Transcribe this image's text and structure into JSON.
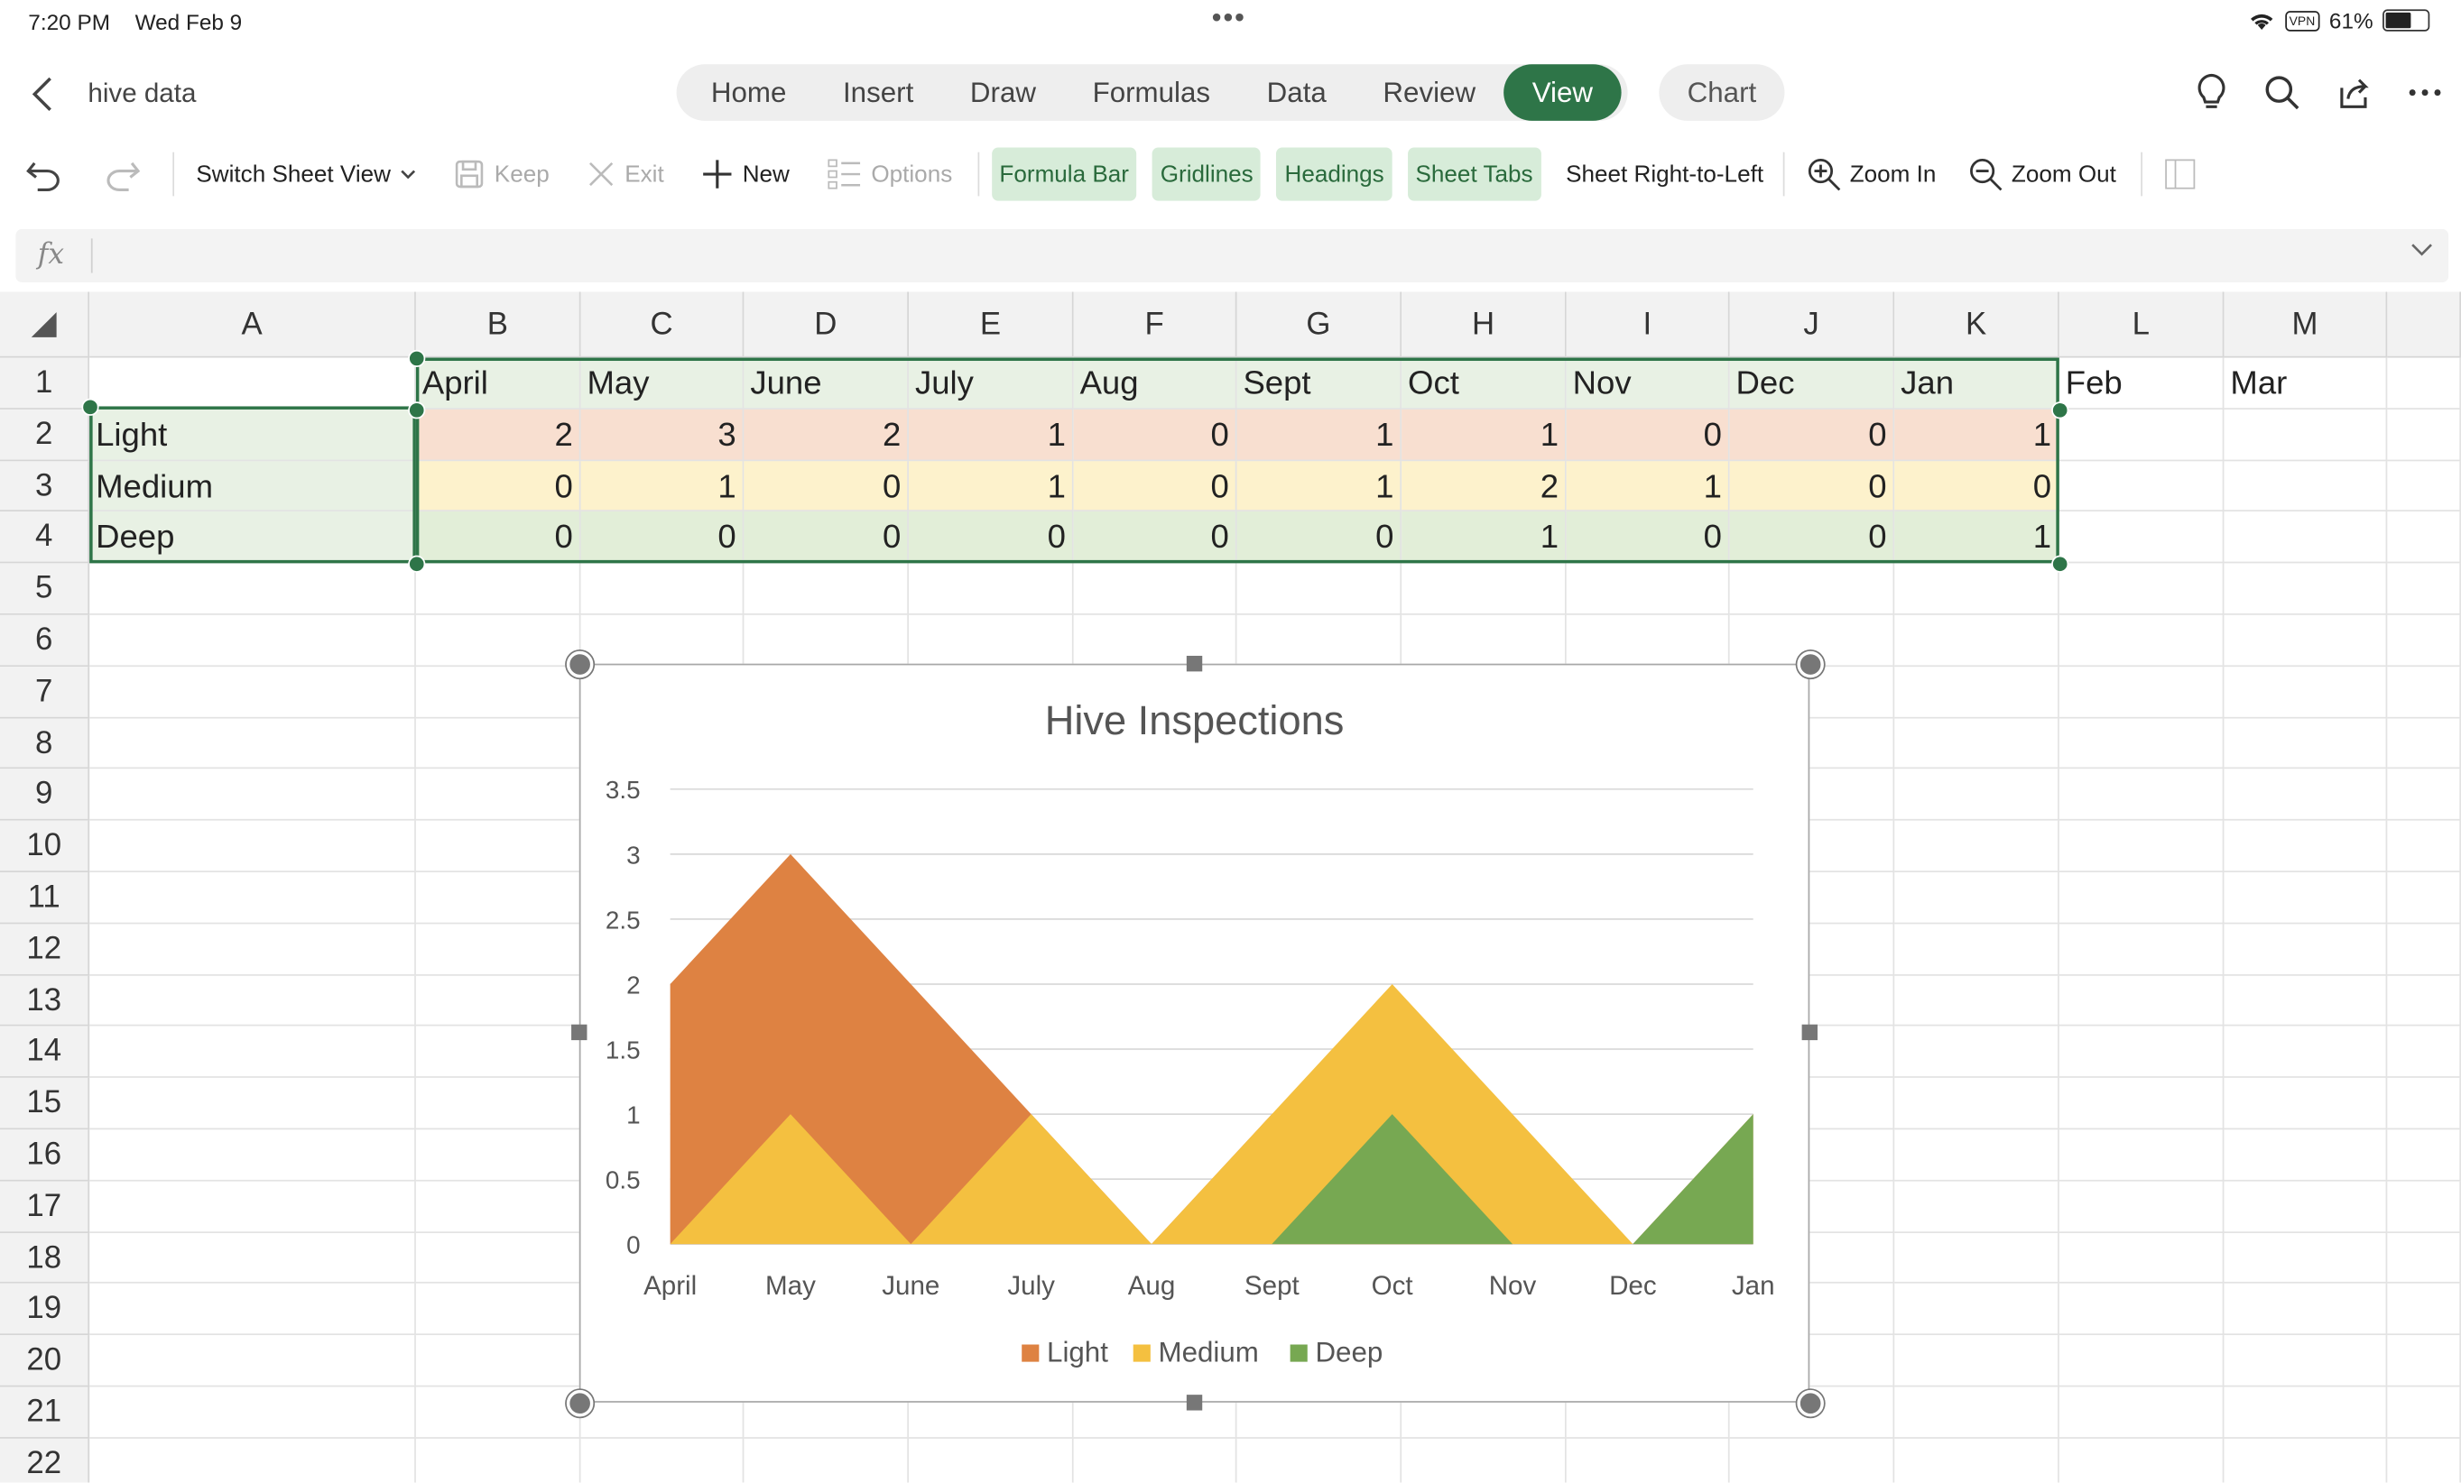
{
  "status": {
    "time": "7:20 PM",
    "date": "Wed Feb 9",
    "vpn": "VPN",
    "battery": "61%",
    "battery_level": 0.61
  },
  "doc": {
    "title": "hive data"
  },
  "tabs": [
    "Home",
    "Insert",
    "Draw",
    "Formulas",
    "Data",
    "Review",
    "View"
  ],
  "active_tab": "View",
  "chart_tab": "Chart",
  "ribbon": {
    "switch_sheet_view": "Switch Sheet View",
    "keep": "Keep",
    "exit": "Exit",
    "new": "New",
    "options": "Options",
    "formula_bar": "Formula Bar",
    "gridlines": "Gridlines",
    "headings": "Headings",
    "sheet_tabs": "Sheet Tabs",
    "sheet_rtl": "Sheet Right-to-Left",
    "zoom_in": "Zoom In",
    "zoom_out": "Zoom Out"
  },
  "formula": {
    "fx": "fx",
    "value": ""
  },
  "sheet": {
    "columns": [
      "A",
      "B",
      "C",
      "D",
      "E",
      "F",
      "G",
      "H",
      "I",
      "J",
      "K",
      "L",
      "M"
    ],
    "header_row": [
      "",
      "April",
      "May",
      "June",
      "July",
      "Aug",
      "Sept",
      "Oct",
      "Nov",
      "Dec",
      "Jan",
      "Feb",
      "Mar"
    ],
    "rows": [
      {
        "label": "Light",
        "values": [
          2,
          3,
          2,
          1,
          0,
          1,
          1,
          0,
          0,
          1
        ]
      },
      {
        "label": "Medium",
        "values": [
          0,
          1,
          0,
          1,
          0,
          1,
          2,
          1,
          0,
          0
        ]
      },
      {
        "label": "Deep",
        "values": [
          0,
          0,
          0,
          0,
          0,
          0,
          1,
          0,
          0,
          1
        ]
      }
    ],
    "row_numbers": [
      1,
      2,
      3,
      4,
      5,
      6,
      7,
      8,
      9,
      10,
      11,
      12,
      13,
      14,
      15,
      16,
      17,
      18,
      19,
      20,
      21,
      22
    ]
  },
  "chart_data": {
    "type": "area",
    "title": "Hive Inspections",
    "categories": [
      "April",
      "May",
      "June",
      "July",
      "Aug",
      "Sept",
      "Oct",
      "Nov",
      "Dec",
      "Jan"
    ],
    "series": [
      {
        "name": "Light",
        "values": [
          2,
          3,
          2,
          1,
          0,
          1,
          1,
          0,
          0,
          1
        ],
        "color": "#de8242"
      },
      {
        "name": "Medium",
        "values": [
          0,
          1,
          0,
          1,
          0,
          1,
          2,
          1,
          0,
          0
        ],
        "color": "#f4c040"
      },
      {
        "name": "Deep",
        "values": [
          0,
          0,
          0,
          0,
          0,
          0,
          1,
          0,
          0,
          1
        ],
        "color": "#77a852"
      }
    ],
    "ylim": [
      0,
      3.5
    ],
    "yticks": [
      "0",
      "0.5",
      "1",
      "1.5",
      "2",
      "2.5",
      "3",
      "3.5"
    ],
    "grid": true,
    "legend": "bottom",
    "stacked": false
  }
}
